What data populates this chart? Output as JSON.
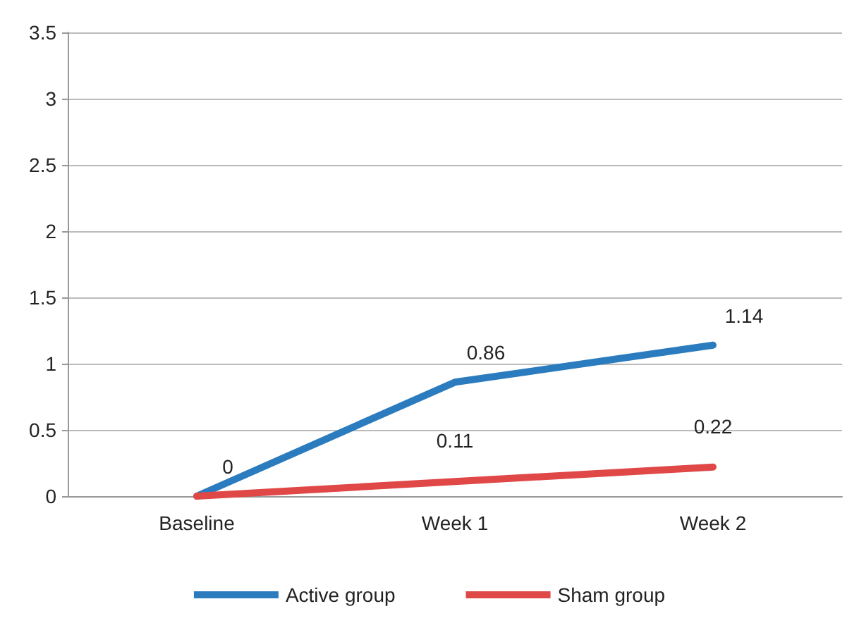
{
  "chart_data": {
    "type": "line",
    "categories": [
      "Baseline",
      "Week 1",
      "Week 2"
    ],
    "series": [
      {
        "name": "Active group",
        "color": "#2b7bbf",
        "values": [
          0,
          0.86,
          1.14
        ],
        "value_labels": [
          "0",
          "0.86",
          "1.14"
        ]
      },
      {
        "name": "Sham group",
        "color": "#e04848",
        "values": [
          0,
          0.11,
          0.22
        ],
        "value_labels": [
          null,
          "0.11",
          "0.22"
        ]
      }
    ],
    "ylim": [
      0,
      3.5
    ],
    "yticks": [
      0,
      0.5,
      1,
      1.5,
      2,
      2.5,
      3,
      3.5
    ],
    "grid": "y",
    "legend": "bottom",
    "marker": "none",
    "line_style": "solid"
  }
}
